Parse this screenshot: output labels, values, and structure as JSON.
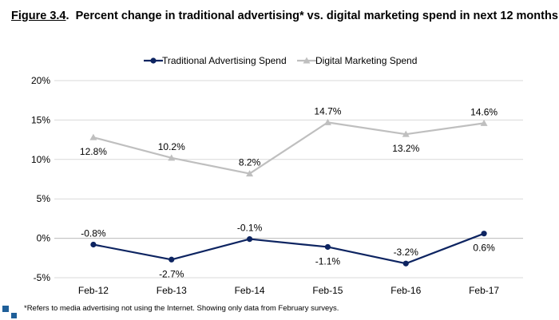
{
  "figure": {
    "number": "Figure 3.4",
    "title": "Percent change in traditional advertising* vs. digital marketing spend in next 12 months",
    "footnote": "*Refers to media advertising not using the Internet. Showing only data from February surveys."
  },
  "chart_data": {
    "type": "line",
    "title": "Percent change in traditional advertising* vs. digital marketing spend in next 12 months",
    "xlabel": "",
    "ylabel": "",
    "categories": [
      "Feb-12",
      "Feb-13",
      "Feb-14",
      "Feb-15",
      "Feb-16",
      "Feb-17"
    ],
    "ylim": [
      -5,
      20
    ],
    "yticks": [
      -5,
      0,
      5,
      10,
      15,
      20
    ],
    "ytick_labels": [
      "-5%",
      "0%",
      "5%",
      "10%",
      "15%",
      "20%"
    ],
    "grid": true,
    "legend": "top",
    "series": [
      {
        "name": "Traditional Advertising Spend",
        "values": [
          -0.8,
          -2.7,
          -0.1,
          -1.1,
          -3.2,
          0.6
        ],
        "labels": [
          "-0.8%",
          "-2.7%",
          "-0.1%",
          "-1.1%",
          "-3.2%",
          "0.6%"
        ],
        "label_pos": [
          "above",
          "below",
          "above",
          "below",
          "above",
          "below"
        ],
        "color": "#0d2461",
        "marker": "circle"
      },
      {
        "name": "Digital Marketing Spend",
        "values": [
          12.8,
          10.2,
          8.2,
          14.7,
          13.2,
          14.6
        ],
        "labels": [
          "12.8%",
          "10.2%",
          "8.2%",
          "14.7%",
          "13.2%",
          "14.6%"
        ],
        "label_pos": [
          "below",
          "above",
          "above",
          "above",
          "below",
          "above"
        ],
        "color": "#bfbfbf",
        "marker": "triangle"
      }
    ]
  }
}
